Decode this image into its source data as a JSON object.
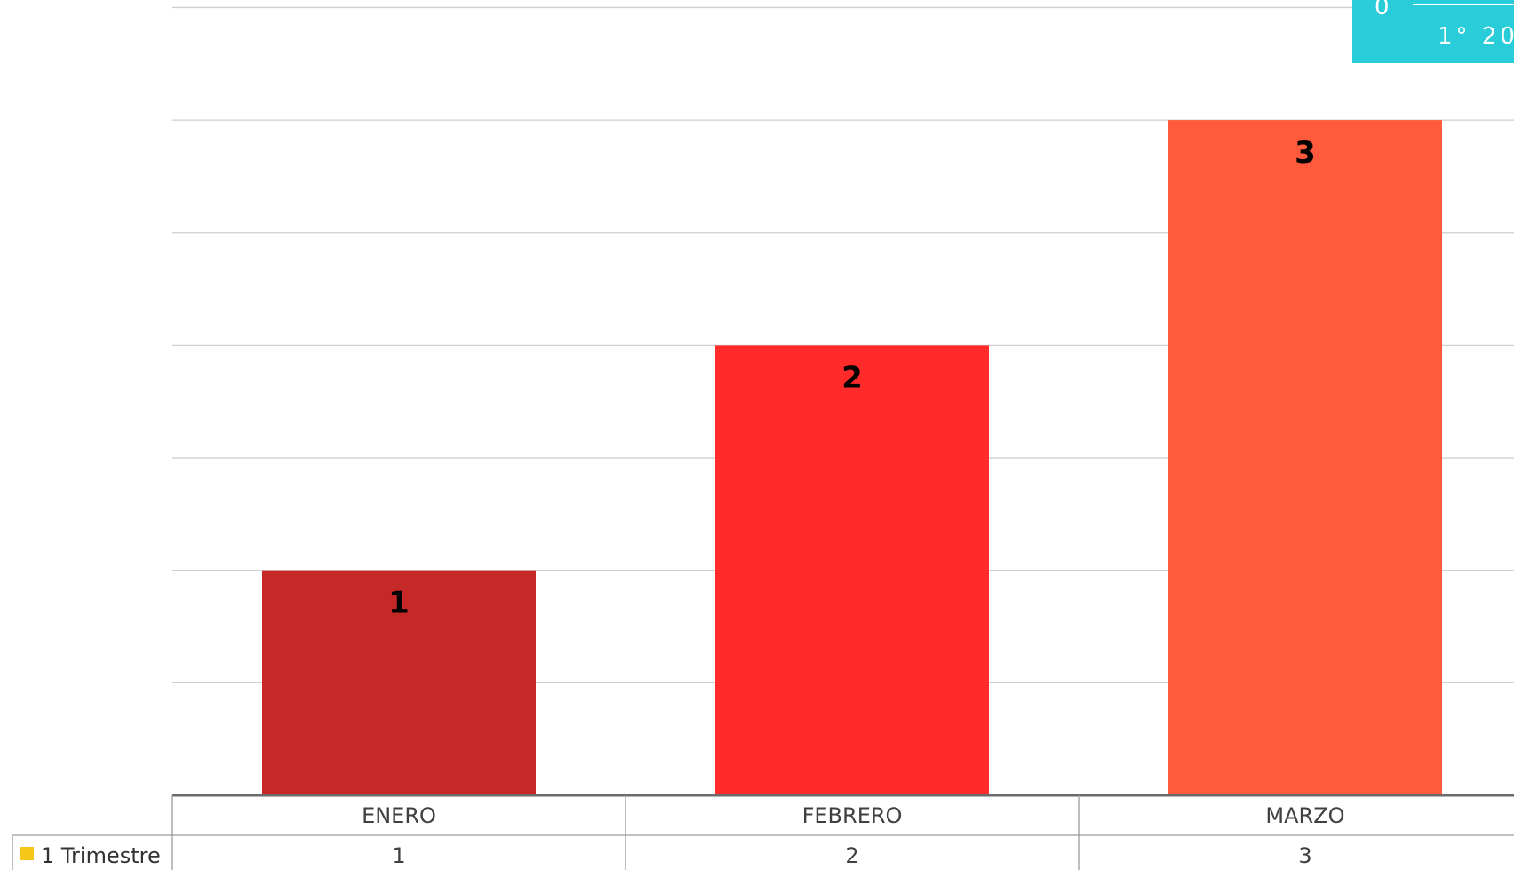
{
  "chart_data": {
    "type": "bar",
    "categories": [
      "ENERO",
      "FEBRERO",
      "MARZO"
    ],
    "series": [
      {
        "name": "1 Trimestre",
        "values": [
          1,
          2,
          3
        ],
        "legend_color": "#f5c518"
      }
    ],
    "bar_colors": [
      "#c62828",
      "#ff2a2a",
      "#ff5a3c"
    ],
    "ylim": [
      0,
      3.5
    ],
    "grid": true,
    "data_table": true,
    "title": "",
    "xlabel": "",
    "ylabel": ""
  },
  "badge": {
    "text": "1° 20",
    "tick_text": "0",
    "color": "#29cdd9"
  }
}
